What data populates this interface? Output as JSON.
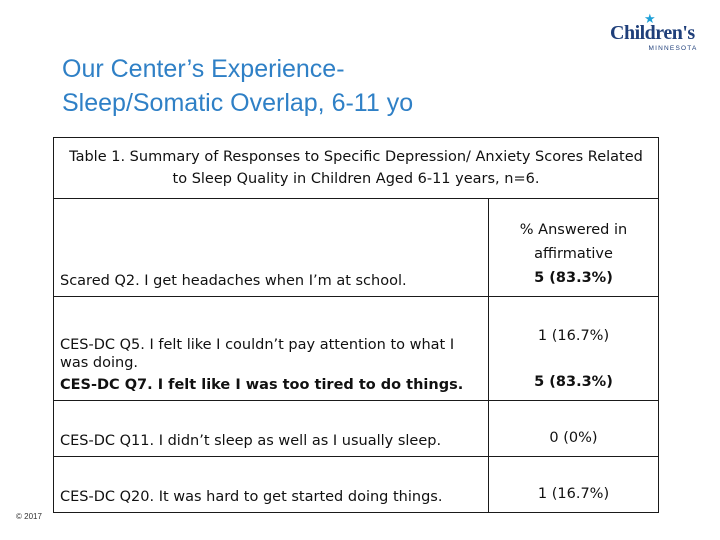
{
  "logo": {
    "name": "Children's",
    "sub": "MINNESOTA"
  },
  "title": {
    "line1": "Our Center’s Experience-",
    "line2": "Sleep/Somatic Overlap, 6-11 yo"
  },
  "table": {
    "caption": "Table 1. Summary of Responses to Specific Depression/ Anxiety Scores Related to Sleep Quality in Children Aged 6-11 years, n=6.",
    "header": "% Answered in affirmative",
    "rows": [
      {
        "q": "Scared Q2. I get headaches when I’m at school.",
        "v": "5 (83.3%)"
      },
      {
        "q": "CES-DC Q5. I felt like I couldn’t pay attention to what I was doing.",
        "v": "1 (16.7%)"
      },
      {
        "q": "CES-DC Q7. I felt like I was too tired to do things.",
        "v": "5 (83.3%)"
      },
      {
        "q": "CES-DC Q11. I didn’t sleep as well as I usually sleep.",
        "v": "0 (0%)"
      },
      {
        "q": "CES-DC Q20. It was hard to get started doing things.",
        "v": "1 (16.7%)"
      }
    ]
  },
  "footer": {
    "copyright": "© 2017"
  }
}
